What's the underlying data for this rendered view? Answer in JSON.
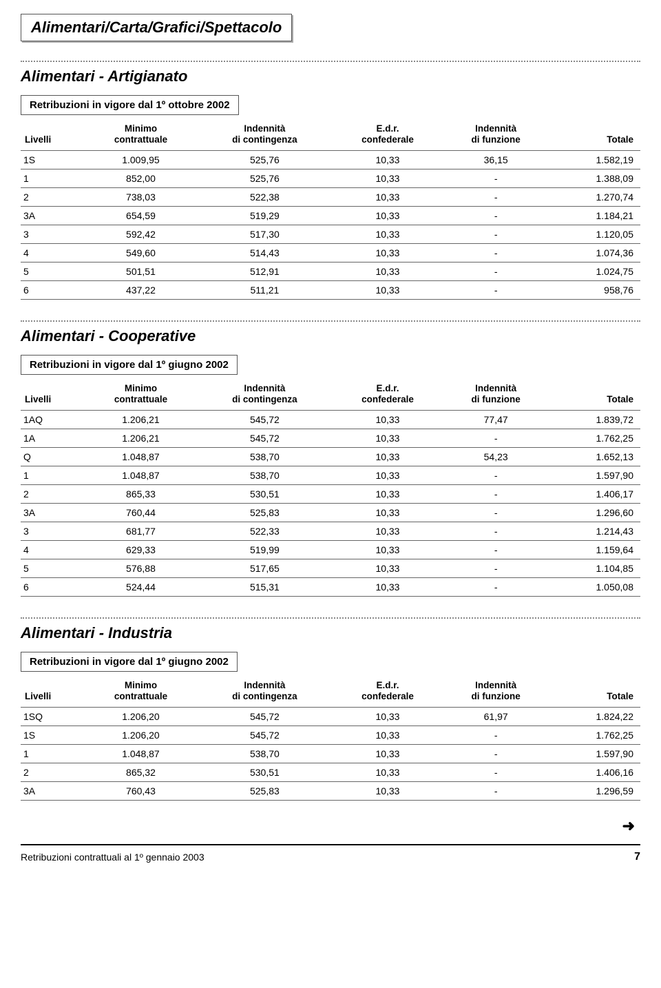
{
  "breadcrumb": "Alimentari/Carta/Grafici/Spettacolo",
  "columns": {
    "livelli": "Livelli",
    "minimo_l1": "Minimo",
    "minimo_l2": "contrattuale",
    "ind_cont_l1": "Indennità",
    "ind_cont_l2": "di contingenza",
    "edr_l1": "E.d.r.",
    "edr_l2": "confederale",
    "ind_fun_l1": "Indennità",
    "ind_fun_l2": "di funzione",
    "totale": "Totale"
  },
  "sections": [
    {
      "title": "Alimentari - Artigianato",
      "caption": "Retribuzioni in vigore dal 1º ottobre 2002",
      "rows": [
        {
          "l": "1S",
          "c1": "1.009,95",
          "c2": "525,76",
          "c3": "10,33",
          "c4": "36,15",
          "c5": "1.582,19"
        },
        {
          "l": "1",
          "c1": "852,00",
          "c2": "525,76",
          "c3": "10,33",
          "c4": "-",
          "c5": "1.388,09"
        },
        {
          "l": "2",
          "c1": "738,03",
          "c2": "522,38",
          "c3": "10,33",
          "c4": "-",
          "c5": "1.270,74"
        },
        {
          "l": "3A",
          "c1": "654,59",
          "c2": "519,29",
          "c3": "10,33",
          "c4": "-",
          "c5": "1.184,21"
        },
        {
          "l": "3",
          "c1": "592,42",
          "c2": "517,30",
          "c3": "10,33",
          "c4": "-",
          "c5": "1.120,05"
        },
        {
          "l": "4",
          "c1": "549,60",
          "c2": "514,43",
          "c3": "10,33",
          "c4": "-",
          "c5": "1.074,36"
        },
        {
          "l": "5",
          "c1": "501,51",
          "c2": "512,91",
          "c3": "10,33",
          "c4": "-",
          "c5": "1.024,75"
        },
        {
          "l": "6",
          "c1": "437,22",
          "c2": "511,21",
          "c3": "10,33",
          "c4": "-",
          "c5": "958,76"
        }
      ]
    },
    {
      "title": "Alimentari - Cooperative",
      "caption": "Retribuzioni in vigore dal 1º giugno 2002",
      "rows": [
        {
          "l": "1AQ",
          "c1": "1.206,21",
          "c2": "545,72",
          "c3": "10,33",
          "c4": "77,47",
          "c5": "1.839,72"
        },
        {
          "l": "1A",
          "c1": "1.206,21",
          "c2": "545,72",
          "c3": "10,33",
          "c4": "-",
          "c5": "1.762,25"
        },
        {
          "l": "Q",
          "c1": "1.048,87",
          "c2": "538,70",
          "c3": "10,33",
          "c4": "54,23",
          "c5": "1.652,13"
        },
        {
          "l": "1",
          "c1": "1.048,87",
          "c2": "538,70",
          "c3": "10,33",
          "c4": "-",
          "c5": "1.597,90"
        },
        {
          "l": "2",
          "c1": "865,33",
          "c2": "530,51",
          "c3": "10,33",
          "c4": "-",
          "c5": "1.406,17"
        },
        {
          "l": "3A",
          "c1": "760,44",
          "c2": "525,83",
          "c3": "10,33",
          "c4": "-",
          "c5": "1.296,60"
        },
        {
          "l": "3",
          "c1": "681,77",
          "c2": "522,33",
          "c3": "10,33",
          "c4": "-",
          "c5": "1.214,43"
        },
        {
          "l": "4",
          "c1": "629,33",
          "c2": "519,99",
          "c3": "10,33",
          "c4": "-",
          "c5": "1.159,64"
        },
        {
          "l": "5",
          "c1": "576,88",
          "c2": "517,65",
          "c3": "10,33",
          "c4": "-",
          "c5": "1.104,85"
        },
        {
          "l": "6",
          "c1": "524,44",
          "c2": "515,31",
          "c3": "10,33",
          "c4": "-",
          "c5": "1.050,08"
        }
      ]
    },
    {
      "title": "Alimentari - Industria",
      "caption": "Retribuzioni in vigore dal 1º giugno 2002",
      "rows": [
        {
          "l": "1SQ",
          "c1": "1.206,20",
          "c2": "545,72",
          "c3": "10,33",
          "c4": "61,97",
          "c5": "1.824,22"
        },
        {
          "l": "1S",
          "c1": "1.206,20",
          "c2": "545,72",
          "c3": "10,33",
          "c4": "-",
          "c5": "1.762,25"
        },
        {
          "l": "1",
          "c1": "1.048,87",
          "c2": "538,70",
          "c3": "10,33",
          "c4": "-",
          "c5": "1.597,90"
        },
        {
          "l": "2",
          "c1": "865,32",
          "c2": "530,51",
          "c3": "10,33",
          "c4": "-",
          "c5": "1.406,16"
        },
        {
          "l": "3A",
          "c1": "760,43",
          "c2": "525,83",
          "c3": "10,33",
          "c4": "-",
          "c5": "1.296,59"
        }
      ]
    }
  ],
  "footer": {
    "text": "Retribuzioni contrattuali al 1º gennaio 2003",
    "arrow": "➜",
    "page": "7"
  }
}
